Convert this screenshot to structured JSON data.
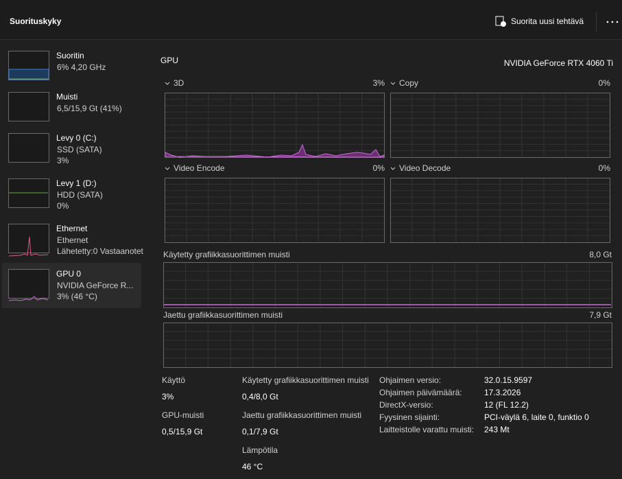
{
  "header": {
    "title": "Suorituskyky",
    "action": "Suorita uusi tehtävä"
  },
  "sidebar": [
    {
      "title": "Suoritin",
      "lines": [
        "6%  4,20 GHz"
      ]
    },
    {
      "title": "Muisti",
      "lines": [
        "6,5/15,9 Gt (41%)"
      ]
    },
    {
      "title": "Levy 0 (C:)",
      "lines": [
        "SSD (SATA)",
        "3%"
      ]
    },
    {
      "title": "Levy 1 (D:)",
      "lines": [
        "HDD (SATA)",
        "0%"
      ]
    },
    {
      "title": "Ethernet",
      "lines": [
        "Ethernet",
        "Lähetetty:0 Vastaanotet"
      ]
    },
    {
      "title": "GPU 0",
      "lines": [
        "NVIDIA GeForce R...",
        "3%  (46 °C)"
      ]
    }
  ],
  "gpu": {
    "title": "GPU",
    "model": "NVIDIA GeForce RTX 4060 Ti",
    "engines": [
      {
        "name": "3D",
        "value": "3%"
      },
      {
        "name": "Copy",
        "value": "0%"
      },
      {
        "name": "Video Encode",
        "value": "0%"
      },
      {
        "name": "Video Decode",
        "value": "0%"
      }
    ],
    "dedicated_memory": {
      "label": "Käytetty grafiikkasuorittimen muisti",
      "max": "8,0 Gt"
    },
    "shared_memory": {
      "label": "Jaettu grafiikkasuorittimen muisti",
      "max": "7,9 Gt"
    },
    "stats": [
      {
        "label": "Käyttö",
        "value": "3%"
      },
      {
        "label": "GPU-muisti",
        "value": "0,5/15,9 Gt"
      },
      {
        "label": "Käytetty grafiikkasuorittimen muisti",
        "value": "0,4/8,0 Gt"
      },
      {
        "label": "Jaettu grafiikkasuorittimen muisti",
        "value": "0,1/7,9 Gt"
      },
      {
        "label": "Lämpötila",
        "value": "46 °C"
      }
    ],
    "details": [
      {
        "label": "Ohjaimen versio:",
        "value": "32.0.15.9597"
      },
      {
        "label": "Ohjaimen päivämäärä:",
        "value": "17.3.2026"
      },
      {
        "label": "DirectX-versio:",
        "value": "12 (FL 12.2)"
      },
      {
        "label": "Fyysinen sijainti:",
        "value": "PCI-väylä 6, laite 0, funktio 0"
      },
      {
        "label": "Laitteistolle varattu muisti:",
        "value": "243 Mt"
      }
    ]
  }
}
